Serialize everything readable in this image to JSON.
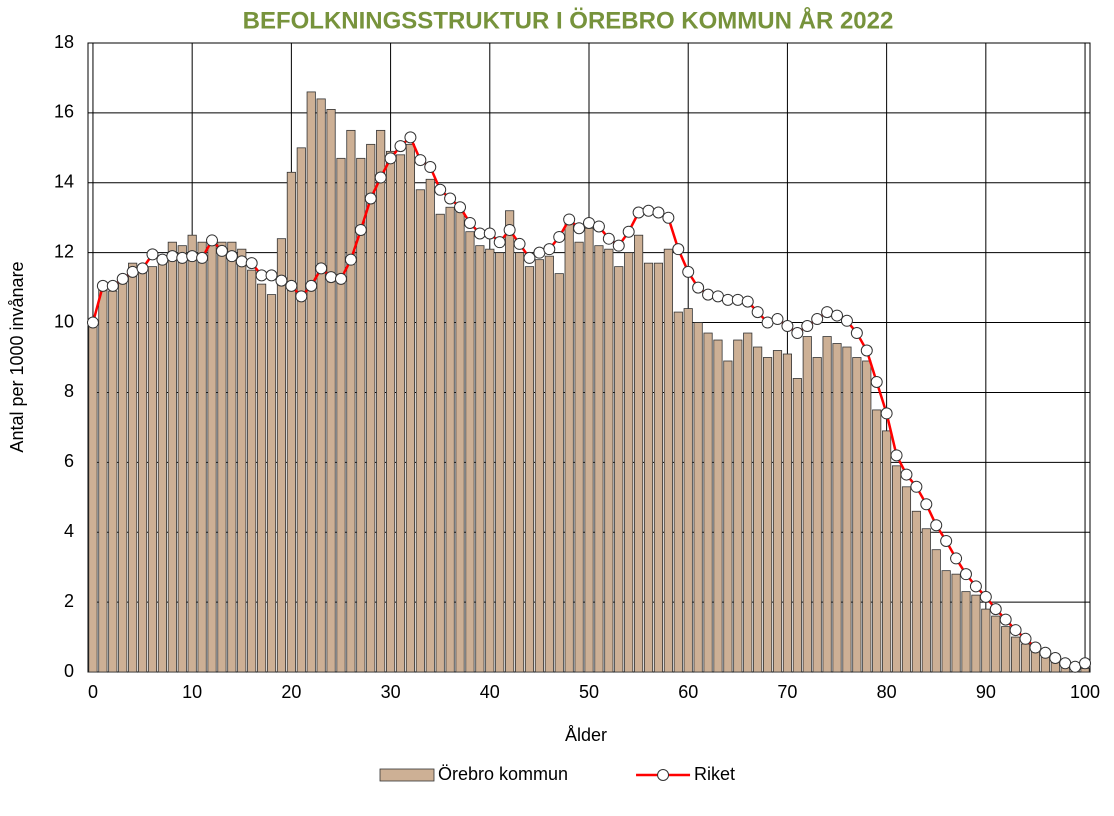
{
  "chart_data": {
    "type": "bar_line",
    "title": "BEFOLKNINGSSTRUKTUR I ÖREBRO KOMMUN ÅR 2022",
    "x_label": "Ålder",
    "y_label": "Antal per 1000 invånare",
    "x": [
      0,
      1,
      2,
      3,
      4,
      5,
      6,
      7,
      8,
      9,
      10,
      11,
      12,
      13,
      14,
      15,
      16,
      17,
      18,
      19,
      20,
      21,
      22,
      23,
      24,
      25,
      26,
      27,
      28,
      29,
      30,
      31,
      32,
      33,
      34,
      35,
      36,
      37,
      38,
      39,
      40,
      41,
      42,
      43,
      44,
      45,
      46,
      47,
      48,
      49,
      50,
      51,
      52,
      53,
      54,
      55,
      56,
      57,
      58,
      59,
      60,
      61,
      62,
      63,
      64,
      65,
      66,
      67,
      68,
      69,
      70,
      71,
      72,
      73,
      74,
      75,
      76,
      77,
      78,
      79,
      80,
      81,
      82,
      83,
      84,
      85,
      86,
      87,
      88,
      89,
      90,
      91,
      92,
      93,
      94,
      95,
      96,
      97,
      98,
      99,
      100
    ],
    "series": [
      {
        "name": "Örebro kommun",
        "type": "bar",
        "color": "#cdb095",
        "values": [
          10.0,
          11.0,
          10.9,
          11.2,
          11.7,
          11.6,
          11.6,
          11.8,
          12.3,
          12.2,
          12.5,
          12.3,
          12.3,
          12.3,
          12.3,
          12.1,
          11.5,
          11.1,
          10.8,
          12.4,
          14.3,
          15.0,
          16.6,
          16.4,
          16.1,
          14.7,
          15.5,
          14.7,
          15.1,
          15.5,
          14.9,
          14.8,
          15.1,
          13.8,
          14.1,
          13.1,
          13.3,
          13.3,
          12.6,
          12.2,
          12.1,
          12.0,
          13.2,
          12.0,
          11.6,
          11.8,
          11.9,
          11.4,
          12.9,
          12.3,
          12.7,
          12.2,
          12.1,
          11.6,
          12.0,
          12.5,
          11.7,
          11.7,
          12.1,
          10.3,
          10.4,
          10.0,
          9.7,
          9.5,
          8.9,
          9.5,
          9.7,
          9.3,
          9.0,
          9.2,
          9.1,
          8.4,
          9.6,
          9.0,
          9.6,
          9.4,
          9.3,
          9.0,
          8.9,
          7.5,
          6.9,
          5.9,
          5.3,
          4.6,
          4.1,
          3.5,
          2.9,
          2.8,
          2.3,
          2.2,
          1.8,
          1.6,
          1.3,
          1.0,
          0.8,
          0.6,
          0.5,
          0.3,
          0.2,
          0.1,
          0.1
        ]
      },
      {
        "name": "Riket",
        "type": "line",
        "color": "#ff0000",
        "values": [
          10.0,
          11.05,
          11.05,
          11.25,
          11.45,
          11.55,
          11.95,
          11.8,
          11.9,
          11.85,
          11.9,
          11.85,
          12.35,
          12.05,
          11.9,
          11.75,
          11.7,
          11.35,
          11.35,
          11.2,
          11.05,
          10.75,
          11.05,
          11.55,
          11.3,
          11.25,
          11.8,
          12.65,
          13.55,
          14.15,
          14.7,
          15.05,
          15.3,
          14.65,
          14.45,
          13.8,
          13.55,
          13.3,
          12.85,
          12.55,
          12.55,
          12.3,
          12.65,
          12.25,
          11.85,
          12.0,
          12.1,
          12.45,
          12.95,
          12.7,
          12.85,
          12.75,
          12.4,
          12.2,
          12.6,
          13.15,
          13.2,
          13.15,
          13.0,
          12.1,
          11.45,
          11.0,
          10.8,
          10.75,
          10.65,
          10.65,
          10.6,
          10.3,
          10.0,
          10.1,
          9.9,
          9.7,
          9.9,
          10.1,
          10.3,
          10.2,
          10.05,
          9.7,
          9.2,
          8.3,
          7.4,
          6.2,
          5.65,
          5.3,
          4.8,
          4.2,
          3.75,
          3.25,
          2.8,
          2.45,
          2.15,
          1.8,
          1.5,
          1.2,
          0.95,
          0.7,
          0.55,
          0.4,
          0.25,
          0.15,
          0.25
        ]
      }
    ],
    "xlim": [
      -0.5,
      100.5
    ],
    "xticks": [
      0,
      10,
      20,
      30,
      40,
      50,
      60,
      70,
      80,
      90,
      100
    ],
    "ylim": [
      0,
      18
    ],
    "yticks": [
      0,
      2,
      4,
      6,
      8,
      10,
      12,
      14,
      16,
      18
    ],
    "grid": true,
    "legend": "bottom"
  }
}
